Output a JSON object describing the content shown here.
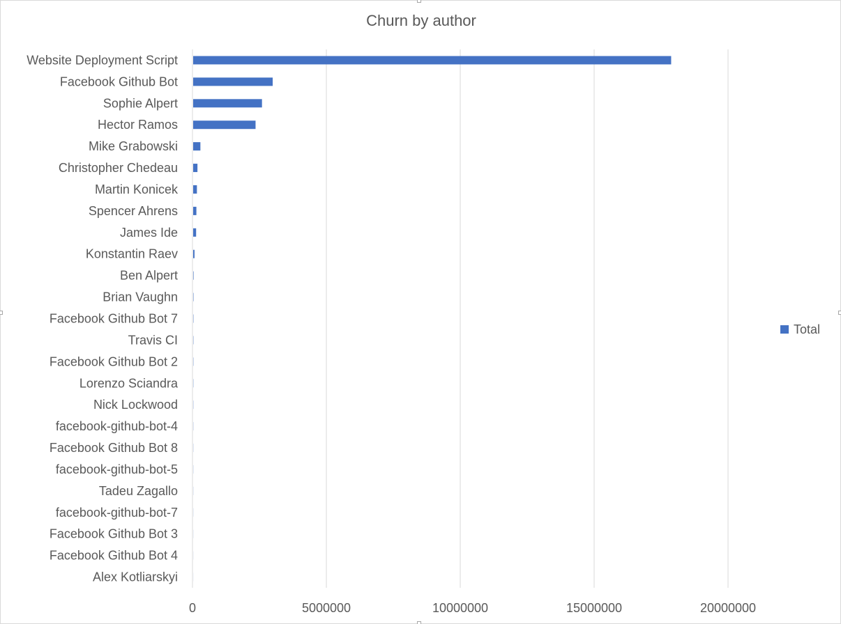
{
  "chart_data": {
    "type": "bar",
    "orientation": "horizontal",
    "title": "Churn by author",
    "categories": [
      "Website Deployment Script",
      "Facebook Github Bot",
      "Sophie Alpert",
      "Hector Ramos",
      "Mike Grabowski",
      "Christopher Chedeau",
      "Martin Konicek",
      "Spencer Ahrens",
      "James Ide",
      "Konstantin Raev",
      "Ben Alpert",
      "Brian Vaughn",
      "Facebook Github Bot 7",
      "Travis CI",
      "Facebook Github Bot 2",
      "Lorenzo Sciandra",
      "Nick Lockwood",
      "facebook-github-bot-4",
      "Facebook Github Bot 8",
      "facebook-github-bot-5",
      "Tadeu Zagallo",
      "facebook-github-bot-7",
      "Facebook Github Bot 3",
      "Facebook Github Bot 4",
      "Alex Kotliarskyi"
    ],
    "series": [
      {
        "name": "Total",
        "color": "#4472c4",
        "values": [
          17850000,
          2970000,
          2570000,
          2330000,
          270000,
          160000,
          140000,
          120000,
          110000,
          50000,
          15000,
          12000,
          10000,
          9000,
          8000,
          7000,
          6000,
          5000,
          4500,
          4000,
          3500,
          3000,
          2500,
          2000,
          1500
        ]
      }
    ],
    "xlim": [
      0,
      25000000
    ],
    "xticks": [
      "0",
      "5000000",
      "10000000",
      "15000000",
      "20000000"
    ],
    "grid": true,
    "legend_position": "right"
  }
}
